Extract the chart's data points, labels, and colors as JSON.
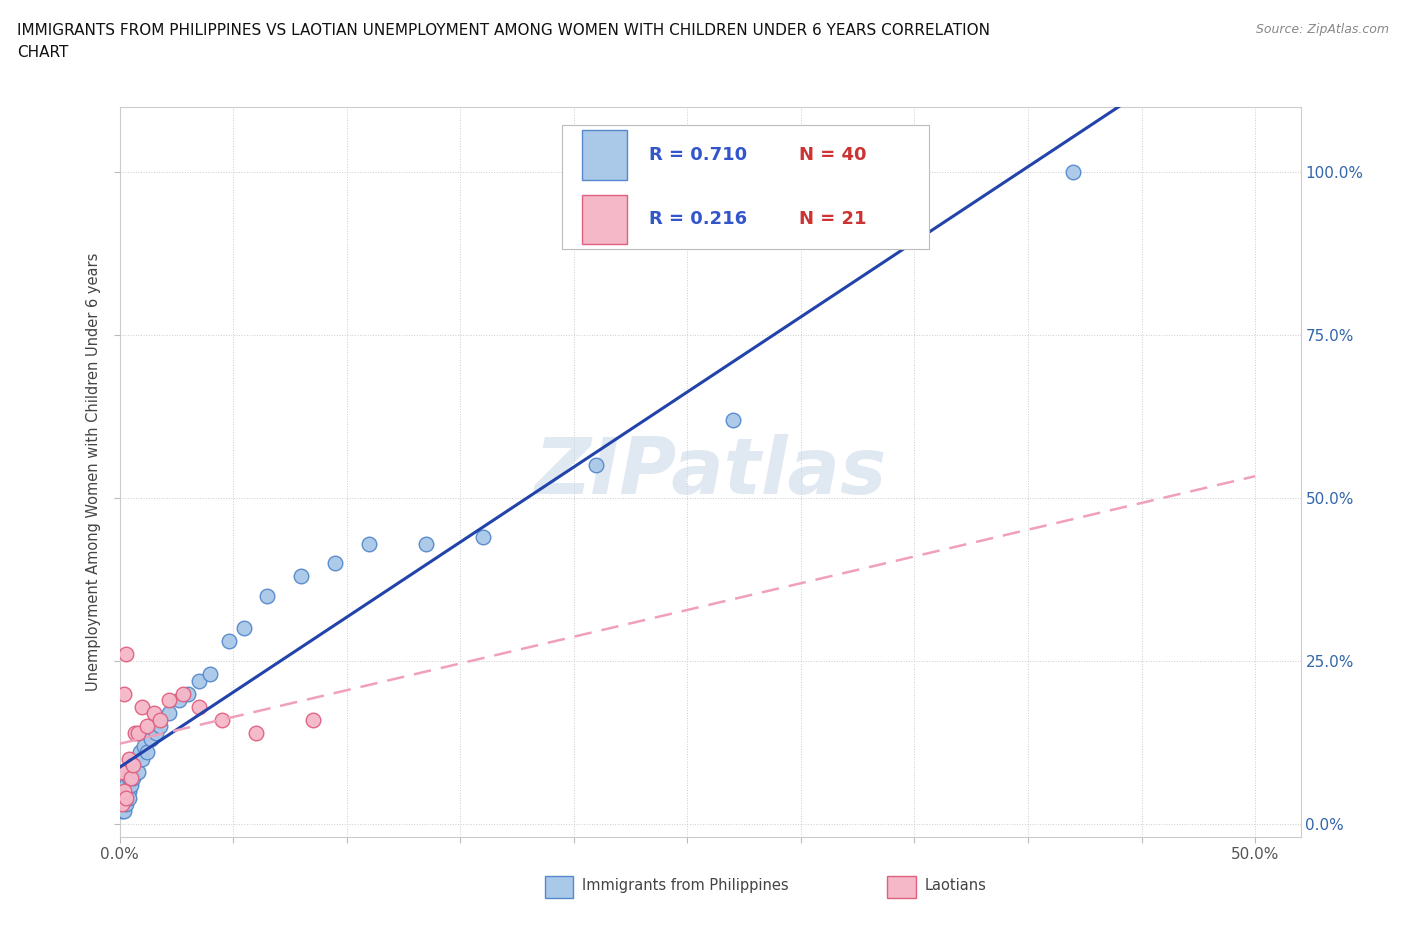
{
  "title_line1": "IMMIGRANTS FROM PHILIPPINES VS LAOTIAN UNEMPLOYMENT AMONG WOMEN WITH CHILDREN UNDER 6 YEARS CORRELATION",
  "title_line2": "CHART",
  "source": "Source: ZipAtlas.com",
  "ylabel": "Unemployment Among Women with Children Under 6 years",
  "xlim": [
    0.0,
    0.52
  ],
  "ylim": [
    -0.02,
    1.1
  ],
  "x_ticks": [
    0.0,
    0.05,
    0.1,
    0.15,
    0.2,
    0.25,
    0.3,
    0.35,
    0.4,
    0.45,
    0.5
  ],
  "x_tick_labels": [
    "0.0%",
    "",
    "",
    "",
    "",
    "",
    "",
    "",
    "",
    "",
    "50.0%"
  ],
  "y_ticks": [
    0.0,
    0.25,
    0.5,
    0.75,
    1.0
  ],
  "y_tick_labels": [
    "0.0%",
    "25.0%",
    "50.0%",
    "75.0%",
    "100.0%"
  ],
  "philippines_color": "#aac8e8",
  "philippines_edge": "#5588cc",
  "laotian_color": "#f5b8c8",
  "laotian_edge": "#e06080",
  "line_philippines_color": "#2244aa",
  "line_laotian_color": "#f0a0b8",
  "R_philippines": 0.71,
  "N_philippines": 40,
  "R_laotian": 0.216,
  "N_laotian": 21,
  "watermark": "ZIPatlas",
  "philippines_x": [
    0.001,
    0.001,
    0.002,
    0.002,
    0.002,
    0.003,
    0.003,
    0.003,
    0.004,
    0.004,
    0.004,
    0.005,
    0.005,
    0.006,
    0.006,
    0.007,
    0.008,
    0.009,
    0.01,
    0.011,
    0.012,
    0.014,
    0.016,
    0.018,
    0.022,
    0.026,
    0.03,
    0.035,
    0.04,
    0.048,
    0.055,
    0.065,
    0.08,
    0.095,
    0.11,
    0.135,
    0.16,
    0.21,
    0.27,
    0.42
  ],
  "philippines_y": [
    0.02,
    0.04,
    0.03,
    0.05,
    0.02,
    0.04,
    0.06,
    0.03,
    0.05,
    0.07,
    0.04,
    0.06,
    0.08,
    0.07,
    0.09,
    0.1,
    0.08,
    0.11,
    0.1,
    0.12,
    0.11,
    0.13,
    0.14,
    0.15,
    0.17,
    0.19,
    0.2,
    0.22,
    0.23,
    0.28,
    0.3,
    0.35,
    0.38,
    0.4,
    0.43,
    0.43,
    0.44,
    0.55,
    0.62,
    1.0
  ],
  "laotian_x": [
    0.001,
    0.001,
    0.002,
    0.002,
    0.003,
    0.003,
    0.004,
    0.005,
    0.006,
    0.007,
    0.008,
    0.01,
    0.012,
    0.015,
    0.018,
    0.022,
    0.028,
    0.035,
    0.045,
    0.06,
    0.085
  ],
  "laotian_y": [
    0.03,
    0.08,
    0.05,
    0.2,
    0.04,
    0.26,
    0.1,
    0.07,
    0.09,
    0.14,
    0.14,
    0.18,
    0.15,
    0.17,
    0.16,
    0.19,
    0.2,
    0.18,
    0.16,
    0.14,
    0.16
  ],
  "legend_R_color": "#3355cc",
  "legend_N_color": "#cc3333"
}
